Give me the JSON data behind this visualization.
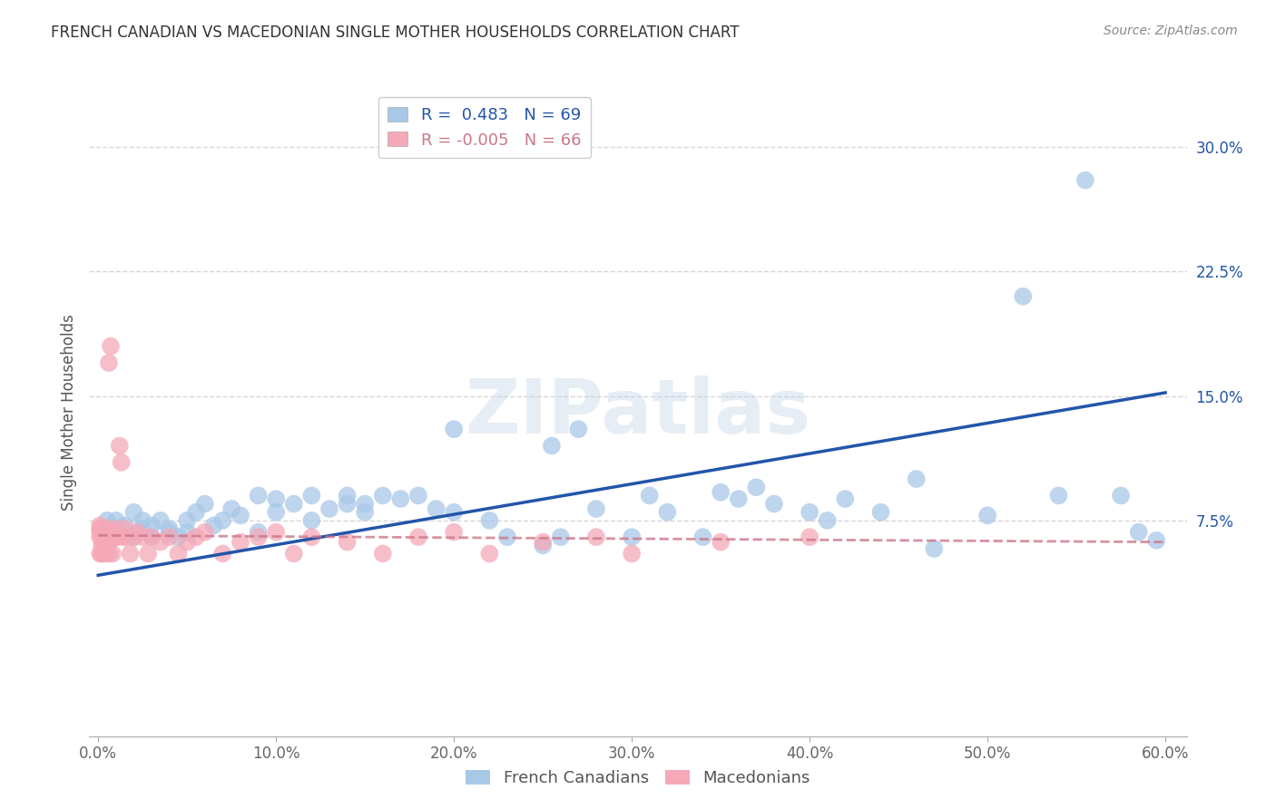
{
  "title": "FRENCH CANADIAN VS MACEDONIAN SINGLE MOTHER HOUSEHOLDS CORRELATION CHART",
  "source": "Source: ZipAtlas.com",
  "xlabel_blue": "French Canadians",
  "xlabel_pink": "Macedonians",
  "ylabel": "Single Mother Households",
  "xlim": [
    -0.005,
    0.612
  ],
  "ylim": [
    -0.055,
    0.335
  ],
  "yticks": [
    0.075,
    0.15,
    0.225,
    0.3
  ],
  "xticks": [
    0.0,
    0.1,
    0.2,
    0.3,
    0.4,
    0.5,
    0.6
  ],
  "blue_R": 0.483,
  "blue_N": 69,
  "pink_R": -0.005,
  "pink_N": 66,
  "blue_color": "#a8c8e8",
  "pink_color": "#f4a8b8",
  "blue_line_color": "#2255aa",
  "pink_line_color": "#cc7788",
  "watermark": "ZIPatlas",
  "blue_scatter_x": [
    0.005,
    0.008,
    0.01,
    0.01,
    0.015,
    0.02,
    0.02,
    0.025,
    0.025,
    0.03,
    0.03,
    0.035,
    0.04,
    0.04,
    0.045,
    0.05,
    0.05,
    0.055,
    0.06,
    0.065,
    0.07,
    0.075,
    0.08,
    0.09,
    0.09,
    0.1,
    0.1,
    0.11,
    0.12,
    0.12,
    0.13,
    0.14,
    0.14,
    0.15,
    0.15,
    0.16,
    0.17,
    0.18,
    0.19,
    0.2,
    0.2,
    0.22,
    0.23,
    0.25,
    0.255,
    0.26,
    0.27,
    0.28,
    0.3,
    0.31,
    0.32,
    0.34,
    0.35,
    0.36,
    0.37,
    0.38,
    0.4,
    0.41,
    0.42,
    0.44,
    0.46,
    0.47,
    0.5,
    0.52,
    0.54,
    0.555,
    0.575,
    0.585,
    0.595
  ],
  "blue_scatter_y": [
    0.075,
    0.07,
    0.075,
    0.068,
    0.072,
    0.08,
    0.065,
    0.07,
    0.075,
    0.065,
    0.072,
    0.075,
    0.068,
    0.07,
    0.065,
    0.075,
    0.068,
    0.08,
    0.085,
    0.072,
    0.075,
    0.082,
    0.078,
    0.068,
    0.09,
    0.08,
    0.088,
    0.085,
    0.075,
    0.09,
    0.082,
    0.085,
    0.09,
    0.085,
    0.08,
    0.09,
    0.088,
    0.09,
    0.082,
    0.08,
    0.13,
    0.075,
    0.065,
    0.06,
    0.12,
    0.065,
    0.13,
    0.082,
    0.065,
    0.09,
    0.08,
    0.065,
    0.092,
    0.088,
    0.095,
    0.085,
    0.08,
    0.075,
    0.088,
    0.08,
    0.1,
    0.058,
    0.078,
    0.21,
    0.09,
    0.28,
    0.09,
    0.068,
    0.063
  ],
  "pink_scatter_x": [
    0.001,
    0.001,
    0.001,
    0.001,
    0.001,
    0.002,
    0.002,
    0.002,
    0.002,
    0.002,
    0.003,
    0.003,
    0.003,
    0.003,
    0.004,
    0.004,
    0.004,
    0.004,
    0.005,
    0.005,
    0.005,
    0.006,
    0.006,
    0.006,
    0.007,
    0.007,
    0.008,
    0.008,
    0.009,
    0.009,
    0.01,
    0.01,
    0.011,
    0.012,
    0.013,
    0.014,
    0.015,
    0.016,
    0.018,
    0.02,
    0.022,
    0.025,
    0.028,
    0.03,
    0.035,
    0.04,
    0.045,
    0.05,
    0.055,
    0.06,
    0.07,
    0.08,
    0.09,
    0.1,
    0.11,
    0.12,
    0.14,
    0.16,
    0.18,
    0.2,
    0.22,
    0.25,
    0.28,
    0.3,
    0.35,
    0.4
  ],
  "pink_scatter_y": [
    0.065,
    0.07,
    0.072,
    0.055,
    0.068,
    0.065,
    0.07,
    0.068,
    0.055,
    0.06,
    0.065,
    0.07,
    0.06,
    0.055,
    0.065,
    0.068,
    0.06,
    0.055,
    0.065,
    0.07,
    0.06,
    0.17,
    0.065,
    0.055,
    0.18,
    0.065,
    0.065,
    0.055,
    0.065,
    0.068,
    0.065,
    0.07,
    0.065,
    0.12,
    0.11,
    0.065,
    0.07,
    0.065,
    0.055,
    0.065,
    0.068,
    0.065,
    0.055,
    0.065,
    0.062,
    0.065,
    0.055,
    0.062,
    0.065,
    0.068,
    0.055,
    0.062,
    0.065,
    0.068,
    0.055,
    0.065,
    0.062,
    0.055,
    0.065,
    0.068,
    0.055,
    0.062,
    0.065,
    0.055,
    0.062,
    0.065
  ],
  "blue_line_x0": 0.0,
  "blue_line_x1": 0.6,
  "blue_line_y0": 0.042,
  "blue_line_y1": 0.152,
  "pink_line_x0": 0.0,
  "pink_line_x1": 0.6,
  "pink_line_y0": 0.066,
  "pink_line_y1": 0.062
}
